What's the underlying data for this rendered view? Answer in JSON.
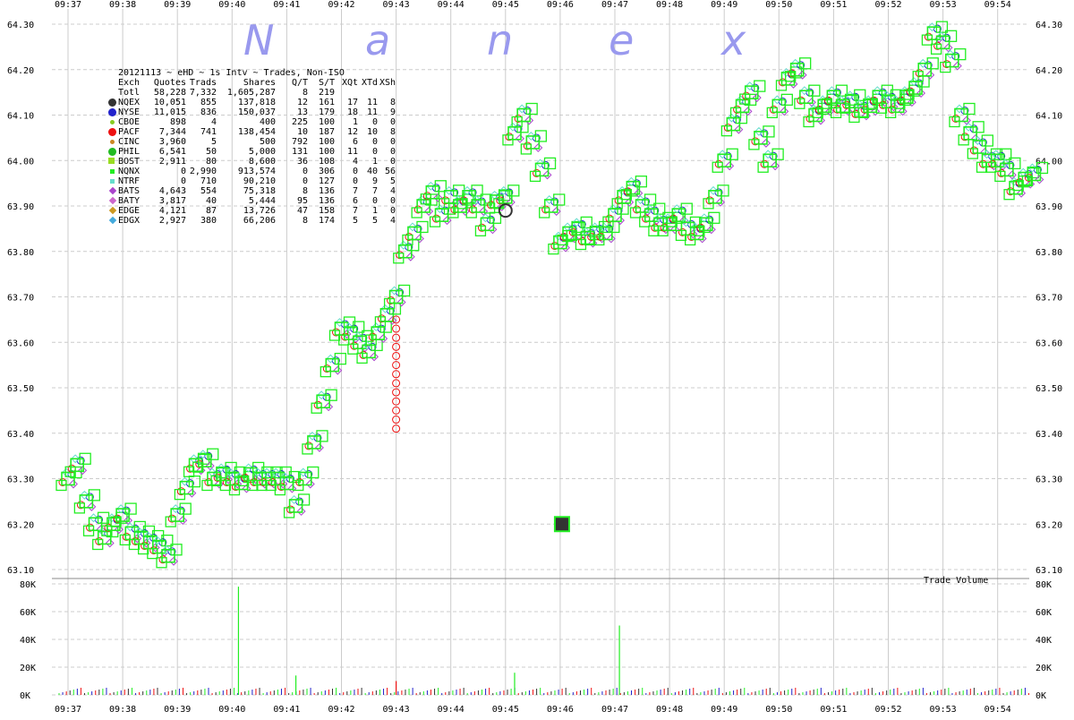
{
  "brand": {
    "letters": [
      "N",
      "a",
      "n",
      "e",
      "x"
    ]
  },
  "legend": {
    "title": "20121113 ~ eHD ~ 1s Intv ~ Trades, Non-ISO",
    "headers": [
      "Exch",
      "Quotes",
      "Trads",
      "Shares",
      "Q/T",
      "S/T",
      "XQt",
      "XTd",
      "XSh"
    ],
    "total": {
      "exch": "Totl",
      "quotes": "58,228",
      "trads": "7,332",
      "shares": "1,605,287",
      "qt": "8",
      "st": "219",
      "xqt": "",
      "xtd": "",
      "xsh": ""
    },
    "rows": [
      {
        "exch": "NQEX",
        "quotes": "10,051",
        "trads": "855",
        "shares": "137,818",
        "qt": "12",
        "st": "161",
        "xqt": "17",
        "xtd": "11",
        "xsh": "8",
        "color": "#333333",
        "symbol": "circle-large"
      },
      {
        "exch": "NYSE",
        "quotes": "11,015",
        "trads": "836",
        "shares": "150,037",
        "qt": "13",
        "st": "179",
        "xqt": "18",
        "xtd": "11",
        "xsh": "9",
        "color": "#2222cc",
        "symbol": "circle-large"
      },
      {
        "exch": "CBOE",
        "quotes": "898",
        "trads": "4",
        "shares": "400",
        "qt": "225",
        "st": "100",
        "xqt": "1",
        "xtd": "0",
        "xsh": "0",
        "color": "#88cc22",
        "symbol": "circle-small"
      },
      {
        "exch": "PACF",
        "quotes": "7,344",
        "trads": "741",
        "shares": "138,454",
        "qt": "10",
        "st": "187",
        "xqt": "12",
        "xtd": "10",
        "xsh": "8",
        "color": "#ee1111",
        "symbol": "circle-large"
      },
      {
        "exch": "CINC",
        "quotes": "3,960",
        "trads": "5",
        "shares": "500",
        "qt": "792",
        "st": "100",
        "xqt": "6",
        "xtd": "0",
        "xsh": "0",
        "color": "#cc8822",
        "symbol": "circle-small"
      },
      {
        "exch": "PHIL",
        "quotes": "6,541",
        "trads": "50",
        "shares": "5,000",
        "qt": "131",
        "st": "100",
        "xqt": "11",
        "xtd": "0",
        "xsh": "0",
        "color": "#22bb22",
        "symbol": "circle-large"
      },
      {
        "exch": "BOST",
        "quotes": "2,911",
        "trads": "80",
        "shares": "8,600",
        "qt": "36",
        "st": "108",
        "xqt": "4",
        "xtd": "1",
        "xsh": "0",
        "color": "#99dd22",
        "symbol": "square"
      },
      {
        "exch": "NQNX",
        "quotes": "0",
        "trads": "2,990",
        "shares": "913,574",
        "qt": "0",
        "st": "306",
        "xqt": "0",
        "xtd": "40",
        "xsh": "56",
        "color": "#22ee22",
        "symbol": "square-small"
      },
      {
        "exch": "NTRF",
        "quotes": "0",
        "trads": "710",
        "shares": "90,210",
        "qt": "0",
        "st": "127",
        "xqt": "0",
        "xtd": "9",
        "xsh": "5",
        "color": "#66ddcc",
        "symbol": "square-small"
      },
      {
        "exch": "BATS",
        "quotes": "4,643",
        "trads": "554",
        "shares": "75,318",
        "qt": "8",
        "st": "136",
        "xqt": "7",
        "xtd": "7",
        "xsh": "4",
        "color": "#aa44cc",
        "symbol": "diamond"
      },
      {
        "exch": "BATY",
        "quotes": "3,817",
        "trads": "40",
        "shares": "5,444",
        "qt": "95",
        "st": "136",
        "xqt": "6",
        "xtd": "0",
        "xsh": "0",
        "color": "#cc66cc",
        "symbol": "diamond"
      },
      {
        "exch": "EDGE",
        "quotes": "4,121",
        "trads": "87",
        "shares": "13,726",
        "qt": "47",
        "st": "158",
        "xqt": "7",
        "xtd": "1",
        "xsh": "0",
        "color": "#cc9922",
        "symbol": "diamond"
      },
      {
        "exch": "EDGX",
        "quotes": "2,927",
        "trads": "380",
        "shares": "66,206",
        "qt": "8",
        "st": "174",
        "xqt": "5",
        "xtd": "5",
        "xsh": "4",
        "color": "#44aadd",
        "symbol": "diamond"
      }
    ]
  },
  "chart_data": [
    {
      "type": "scatter",
      "title": "",
      "x_ticks": [
        "09:37",
        "09:38",
        "09:39",
        "09:40",
        "09:41",
        "09:42",
        "09:43",
        "09:44",
        "09:45",
        "09:46",
        "09:47",
        "09:48",
        "09:49",
        "09:50",
        "09:51",
        "09:52",
        "09:53",
        "09:54"
      ],
      "y_ticks": [
        "63.10",
        "63.20",
        "63.30",
        "63.40",
        "63.50",
        "63.60",
        "63.70",
        "63.80",
        "63.90",
        "64.00",
        "64.10",
        "64.20",
        "64.30"
      ],
      "ylim": [
        63.1,
        64.3
      ],
      "xlim": [
        "09:37:00",
        "09:54:45"
      ],
      "grid": true,
      "series": [
        {
          "name": "NQNX",
          "color": "#22ee22",
          "points": [
            [
              "09:37:00",
              63.3
            ],
            [
              "09:37:10",
              63.33
            ],
            [
              "09:37:20",
              63.25
            ],
            [
              "09:37:30",
              63.2
            ],
            [
              "09:37:40",
              63.17
            ],
            [
              "09:37:50",
              63.2
            ],
            [
              "09:38:00",
              63.22
            ],
            [
              "09:38:10",
              63.18
            ],
            [
              "09:38:20",
              63.17
            ],
            [
              "09:38:30",
              63.16
            ],
            [
              "09:38:40",
              63.15
            ],
            [
              "09:38:50",
              63.13
            ],
            [
              "09:39:00",
              63.22
            ],
            [
              "09:39:10",
              63.28
            ],
            [
              "09:39:20",
              63.33
            ],
            [
              "09:39:30",
              63.34
            ],
            [
              "09:39:40",
              63.3
            ],
            [
              "09:39:50",
              63.31
            ],
            [
              "09:40:00",
              63.3
            ],
            [
              "09:40:10",
              63.29
            ],
            [
              "09:40:20",
              63.31
            ],
            [
              "09:40:30",
              63.3
            ],
            [
              "09:40:40",
              63.3
            ],
            [
              "09:40:50",
              63.3
            ],
            [
              "09:41:00",
              63.29
            ],
            [
              "09:41:10",
              63.24
            ],
            [
              "09:41:20",
              63.3
            ],
            [
              "09:41:30",
              63.38
            ],
            [
              "09:41:40",
              63.47
            ],
            [
              "09:41:50",
              63.55
            ],
            [
              "09:42:00",
              63.63
            ],
            [
              "09:42:10",
              63.62
            ],
            [
              "09:42:20",
              63.6
            ],
            [
              "09:42:30",
              63.58
            ],
            [
              "09:42:40",
              63.62
            ],
            [
              "09:42:50",
              63.66
            ],
            [
              "09:43:00",
              63.7
            ],
            [
              "09:43:10",
              63.8
            ],
            [
              "09:43:20",
              63.84
            ],
            [
              "09:43:30",
              63.9
            ],
            [
              "09:43:40",
              63.93
            ],
            [
              "09:43:50",
              63.88
            ],
            [
              "09:44:00",
              63.92
            ],
            [
              "09:44:10",
              63.9
            ],
            [
              "09:44:20",
              63.92
            ],
            [
              "09:44:30",
              63.9
            ],
            [
              "09:44:40",
              63.86
            ],
            [
              "09:44:50",
              63.91
            ],
            [
              "09:45:00",
              63.92
            ],
            [
              "09:45:10",
              64.06
            ],
            [
              "09:45:20",
              64.1
            ],
            [
              "09:45:30",
              64.04
            ],
            [
              "09:45:40",
              63.98
            ],
            [
              "09:45:50",
              63.9
            ],
            [
              "09:46:00",
              63.82
            ],
            [
              "09:46:10",
              63.84
            ],
            [
              "09:46:20",
              63.85
            ],
            [
              "09:46:30",
              63.83
            ],
            [
              "09:46:40",
              63.84
            ],
            [
              "09:46:50",
              63.84
            ],
            [
              "09:47:00",
              63.88
            ],
            [
              "09:47:10",
              63.92
            ],
            [
              "09:47:20",
              63.94
            ],
            [
              "09:47:30",
              63.9
            ],
            [
              "09:47:40",
              63.88
            ],
            [
              "09:47:50",
              63.86
            ],
            [
              "09:48:00",
              63.86
            ],
            [
              "09:48:10",
              63.88
            ],
            [
              "09:48:20",
              63.85
            ],
            [
              "09:48:30",
              63.84
            ],
            [
              "09:48:40",
              63.86
            ],
            [
              "09:48:50",
              63.92
            ],
            [
              "09:49:00",
              64.0
            ],
            [
              "09:49:10",
              64.08
            ],
            [
              "09:49:20",
              64.12
            ],
            [
              "09:49:30",
              64.15
            ],
            [
              "09:49:40",
              64.05
            ],
            [
              "09:49:50",
              64.0
            ],
            [
              "09:50:00",
              64.12
            ],
            [
              "09:50:10",
              64.18
            ],
            [
              "09:50:20",
              64.2
            ],
            [
              "09:50:30",
              64.14
            ],
            [
              "09:50:40",
              64.1
            ],
            [
              "09:50:50",
              64.12
            ],
            [
              "09:51:00",
              64.14
            ],
            [
              "09:51:10",
              64.12
            ],
            [
              "09:51:20",
              64.13
            ],
            [
              "09:51:30",
              64.11
            ],
            [
              "09:51:40",
              64.12
            ],
            [
              "09:51:50",
              64.14
            ],
            [
              "09:52:00",
              64.13
            ],
            [
              "09:52:10",
              64.12
            ],
            [
              "09:52:20",
              64.14
            ],
            [
              "09:52:30",
              64.16
            ],
            [
              "09:52:40",
              64.2
            ],
            [
              "09:52:50",
              64.28
            ],
            [
              "09:53:00",
              64.26
            ],
            [
              "09:53:10",
              64.22
            ],
            [
              "09:53:20",
              64.1
            ],
            [
              "09:53:30",
              64.06
            ],
            [
              "09:53:40",
              64.03
            ],
            [
              "09:53:50",
              64.0
            ],
            [
              "09:54:00",
              64.0
            ],
            [
              "09:54:10",
              63.98
            ],
            [
              "09:54:20",
              63.94
            ],
            [
              "09:54:30",
              63.96
            ],
            [
              "09:54:40",
              63.97
            ]
          ]
        },
        {
          "name": "PACF",
          "color": "#ee1111",
          "points": [
            [
              "09:43:00",
              63.65
            ],
            [
              "09:43:00",
              63.63
            ],
            [
              "09:43:00",
              63.61
            ],
            [
              "09:43:00",
              63.59
            ],
            [
              "09:43:00",
              63.57
            ],
            [
              "09:43:00",
              63.55
            ],
            [
              "09:43:00",
              63.53
            ],
            [
              "09:43:00",
              63.51
            ],
            [
              "09:43:00",
              63.49
            ],
            [
              "09:43:00",
              63.47
            ],
            [
              "09:43:00",
              63.45
            ],
            [
              "09:43:00",
              63.43
            ],
            [
              "09:43:00",
              63.41
            ]
          ]
        },
        {
          "name": "NQEX",
          "color": "#333333",
          "points": [
            [
              "09:45:00",
              63.89
            ],
            [
              "09:46:02",
              63.2
            ]
          ]
        }
      ]
    },
    {
      "type": "bar",
      "title": "Trade Volume",
      "ylabel": "",
      "y_ticks": [
        "0K",
        "20K",
        "40K",
        "60K",
        "80K"
      ],
      "ylim": [
        0,
        80000
      ],
      "x_ticks": [
        "09:37",
        "09:38",
        "09:39",
        "09:40",
        "09:41",
        "09:42",
        "09:43",
        "09:44",
        "09:45",
        "09:46",
        "09:47",
        "09:48",
        "09:49",
        "09:50",
        "09:51",
        "09:52",
        "09:53",
        "09:54"
      ],
      "spikes": [
        {
          "x": "09:40:07",
          "value": 78000,
          "color": "#22ee22"
        },
        {
          "x": "09:47:05",
          "value": 50000,
          "color": "#22ee22"
        },
        {
          "x": "09:41:10",
          "value": 14000,
          "color": "#22ee22"
        },
        {
          "x": "09:45:10",
          "value": 16000,
          "color": "#22ee22"
        },
        {
          "x": "09:43:00",
          "value": 10000,
          "color": "#ee1111"
        }
      ]
    }
  ]
}
